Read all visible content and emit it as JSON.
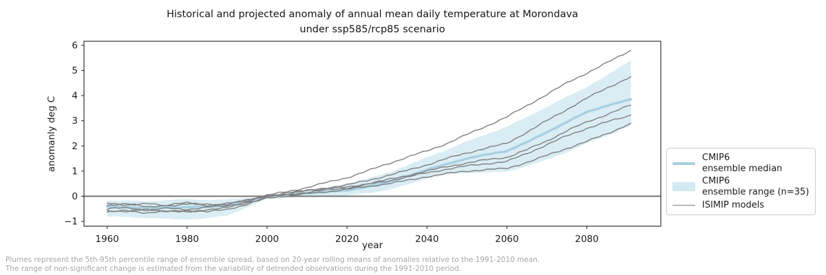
{
  "chart_data": {
    "type": "line",
    "title_line1": "Historical and projected anomaly of annual mean daily temperature at Morondava",
    "title_line2": "under ssp585/rcp85 scenario",
    "xlabel": "year",
    "ylabel": "anomanly deg C",
    "xlim": [
      1954.2,
      2098.5
    ],
    "ylim": [
      -1.19,
      6.16
    ],
    "xticks": [
      1960,
      1980,
      2000,
      2020,
      2040,
      2060,
      2080
    ],
    "yticks": [
      -1,
      0,
      1,
      2,
      3,
      4,
      5,
      6
    ],
    "zero_line_y": 0,
    "grid": false,
    "legend_position": "outside-right",
    "x": [
      1960,
      1965,
      1970,
      1975,
      1980,
      1985,
      1990,
      1995,
      2000,
      2005,
      2010,
      2015,
      2020,
      2025,
      2030,
      2035,
      2040,
      2045,
      2050,
      2055,
      2060,
      2065,
      2070,
      2075,
      2080,
      2085,
      2091
    ],
    "band": {
      "name": "CMIP6 ensemble range (n=35)",
      "upper": [
        -0.16,
        -0.18,
        -0.2,
        -0.15,
        -0.12,
        -0.15,
        -0.13,
        -0.07,
        0.02,
        0.1,
        0.22,
        0.36,
        0.51,
        0.7,
        0.92,
        1.22,
        1.55,
        1.85,
        2.18,
        2.48,
        2.75,
        3.15,
        3.55,
        3.95,
        4.35,
        4.8,
        5.4
      ],
      "lower": [
        -0.8,
        -0.83,
        -0.86,
        -0.9,
        -0.92,
        -0.88,
        -0.76,
        -0.45,
        -0.1,
        -0.05,
        0.0,
        0.0,
        0.02,
        0.12,
        0.25,
        0.45,
        0.72,
        0.85,
        0.92,
        0.95,
        0.97,
        1.2,
        1.45,
        1.75,
        2.1,
        2.4,
        2.8
      ]
    },
    "median": {
      "name": "CMIP6 ensemble median",
      "values": [
        -0.42,
        -0.44,
        -0.46,
        -0.45,
        -0.43,
        -0.42,
        -0.36,
        -0.2,
        0.0,
        0.05,
        0.12,
        0.18,
        0.23,
        0.38,
        0.55,
        0.8,
        1.05,
        1.28,
        1.5,
        1.66,
        1.8,
        2.15,
        2.55,
        2.95,
        3.35,
        3.6,
        3.85
      ]
    },
    "isimip_models": [
      {
        "name": "isimip-model-1",
        "values": [
          -0.35,
          -0.3,
          -0.42,
          -0.35,
          -0.26,
          -0.36,
          -0.3,
          -0.16,
          0.04,
          0.18,
          0.35,
          0.55,
          0.74,
          1.0,
          1.28,
          1.55,
          1.8,
          2.1,
          2.45,
          2.8,
          3.15,
          3.6,
          4.05,
          4.5,
          4.9,
          5.3,
          5.8
        ]
      },
      {
        "name": "isimip-model-2",
        "values": [
          -0.5,
          -0.46,
          -0.55,
          -0.48,
          -0.52,
          -0.44,
          -0.38,
          -0.22,
          0.0,
          0.1,
          0.22,
          0.33,
          0.45,
          0.62,
          0.82,
          1.02,
          1.25,
          1.5,
          1.72,
          1.92,
          2.1,
          2.55,
          3.0,
          3.45,
          3.9,
          4.3,
          4.75
        ]
      },
      {
        "name": "isimip-model-3",
        "values": [
          -0.28,
          -0.34,
          -0.3,
          -0.38,
          -0.3,
          -0.33,
          -0.31,
          -0.16,
          0.03,
          0.12,
          0.24,
          0.3,
          0.36,
          0.5,
          0.65,
          0.82,
          1.0,
          1.18,
          1.32,
          1.45,
          1.55,
          1.85,
          2.2,
          2.6,
          2.95,
          3.25,
          3.62
        ]
      },
      {
        "name": "isimip-model-4",
        "values": [
          -0.56,
          -0.62,
          -0.52,
          -0.6,
          -0.64,
          -0.52,
          -0.46,
          -0.26,
          -0.04,
          0.06,
          0.16,
          0.25,
          0.33,
          0.46,
          0.6,
          0.76,
          0.93,
          1.08,
          1.2,
          1.3,
          1.38,
          1.7,
          2.05,
          2.4,
          2.7,
          2.95,
          3.22
        ]
      },
      {
        "name": "isimip-model-5",
        "values": [
          -0.63,
          -0.57,
          -0.66,
          -0.6,
          -0.56,
          -0.62,
          -0.52,
          -0.32,
          -0.08,
          0.02,
          0.1,
          0.18,
          0.28,
          0.38,
          0.5,
          0.62,
          0.78,
          0.9,
          1.0,
          1.06,
          1.1,
          1.35,
          1.62,
          1.9,
          2.18,
          2.48,
          2.9
        ]
      }
    ],
    "colors": {
      "band_fill": "#add8e6",
      "band_opacity": 0.45,
      "median_line": "#a8cfe2",
      "isimip_line": "#7f7f7f",
      "zero_line": "#6e6e6e",
      "spine": "#1f1f1f",
      "tick_text": "#1a1a1a"
    }
  },
  "legend": {
    "items": [
      {
        "line1": "CMIP6",
        "line2": "ensemble median"
      },
      {
        "line1": "CMIP6",
        "line2": "ensemble range (n=35)"
      },
      {
        "line1": "ISIMIP models",
        "line2": ""
      }
    ]
  },
  "footnote": {
    "line1": "Plumes represent the 5th-95th percentile range of ensemble spread, based on 20-year rolling means of anomalies relative to the 1991-2010 mean.",
    "line2": "The range of non-significant change is estimated from the variability of detrended observations during the 1991-2010 period."
  }
}
